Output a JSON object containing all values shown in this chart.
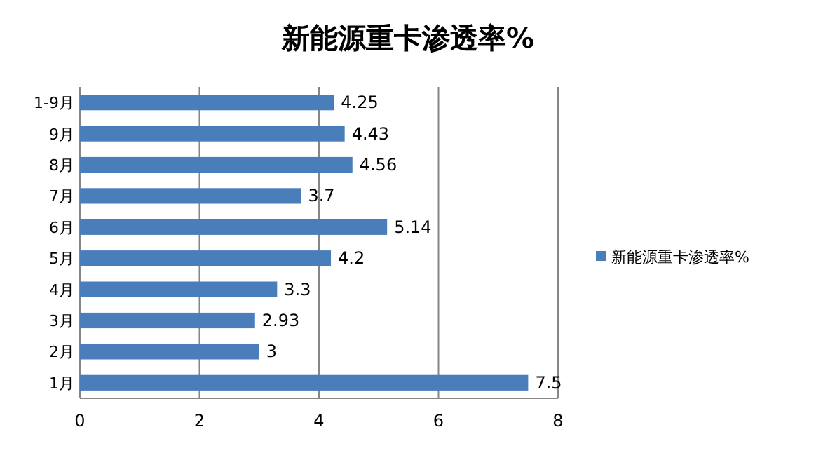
{
  "chart_data": {
    "type": "bar",
    "orientation": "horizontal",
    "title": "新能源重卡渗透率%",
    "categories": [
      "1-9月",
      "9月",
      "8月",
      "7月",
      "6月",
      "5月",
      "4月",
      "3月",
      "2月",
      "1月"
    ],
    "series": [
      {
        "name": "新能源重卡渗透率%",
        "color": "#4a7ebb",
        "values": [
          4.25,
          4.43,
          4.56,
          3.7,
          5.14,
          4.2,
          3.3,
          2.93,
          3,
          7.5
        ]
      }
    ],
    "xlim": [
      0,
      8
    ],
    "xticks": [
      0,
      2,
      4,
      6,
      8
    ],
    "grid": "x",
    "legend": "right",
    "data_labels": true
  }
}
